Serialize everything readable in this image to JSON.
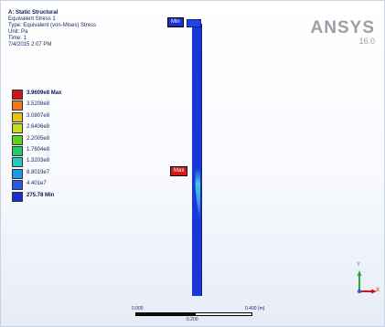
{
  "info": {
    "title": "A: Static Structural",
    "line1": "Equivalent Stress 1",
    "line2": "Type: Equivalent (von-Mises) Stress",
    "line3": "Unit: Pa",
    "line4": "Time: 1",
    "line5": "7/4/2015 2:07 PM"
  },
  "logo": {
    "name": "ANSYS",
    "version": "16.0"
  },
  "legend": [
    {
      "label": "3.9609e8 Max",
      "color": "#d0141c"
    },
    {
      "label": "3.5208e8",
      "color": "#f27a12"
    },
    {
      "label": "3.0807e8",
      "color": "#e8c21a"
    },
    {
      "label": "2.6406e8",
      "color": "#c6de1c"
    },
    {
      "label": "2.2005e8",
      "color": "#5fd21f"
    },
    {
      "label": "1.7604e8",
      "color": "#1fce6a"
    },
    {
      "label": "1.3203e8",
      "color": "#22cbc4"
    },
    {
      "label": "8.8019e7",
      "color": "#2095e9"
    },
    {
      "label": "4.401e7",
      "color": "#2f57e6"
    },
    {
      "label": "275.78 Min",
      "color": "#1a2fcf"
    }
  ],
  "probes": {
    "min_label": "Min",
    "max_label": "Max"
  },
  "scale": {
    "left": "0.000",
    "mid": "0.200",
    "right": "0.400 (m)"
  },
  "triad": {
    "y": "Y",
    "x": "X"
  }
}
